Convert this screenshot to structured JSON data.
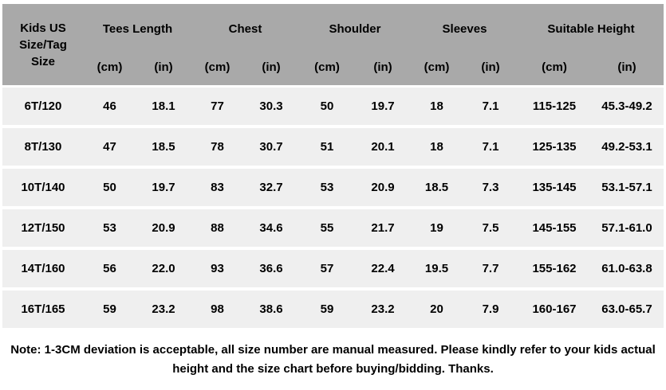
{
  "table": {
    "header": {
      "first": "Kids US Size/Tag Size",
      "groups": [
        "Tees Length",
        "Chest",
        "Shoulder",
        "Sleeves",
        "Suitable Height"
      ],
      "units": [
        "(cm)",
        "(in)",
        "(cm)",
        "(in)",
        "(cm)",
        "(in)",
        "(cm)",
        "(in)",
        "(cm)",
        "(in)"
      ]
    },
    "rows": [
      [
        "6T/120",
        "46",
        "18.1",
        "77",
        "30.3",
        "50",
        "19.7",
        "18",
        "7.1",
        "115-125",
        "45.3-49.2"
      ],
      [
        "8T/130",
        "47",
        "18.5",
        "78",
        "30.7",
        "51",
        "20.1",
        "18",
        "7.1",
        "125-135",
        "49.2-53.1"
      ],
      [
        "10T/140",
        "50",
        "19.7",
        "83",
        "32.7",
        "53",
        "20.9",
        "18.5",
        "7.3",
        "135-145",
        "53.1-57.1"
      ],
      [
        "12T/150",
        "53",
        "20.9",
        "88",
        "34.6",
        "55",
        "21.7",
        "19",
        "7.5",
        "145-155",
        "57.1-61.0"
      ],
      [
        "14T/160",
        "56",
        "22.0",
        "93",
        "36.6",
        "57",
        "22.4",
        "19.5",
        "7.7",
        "155-162",
        "61.0-63.8"
      ],
      [
        "16T/165",
        "59",
        "23.2",
        "98",
        "38.6",
        "59",
        "23.2",
        "20",
        "7.9",
        "160-167",
        "63.0-65.7"
      ]
    ]
  },
  "note": "Note: 1-3CM deviation is acceptable, all size number are manual measured. Please kindly refer to your kids actual height and the size chart before buying/bidding. Thanks."
}
